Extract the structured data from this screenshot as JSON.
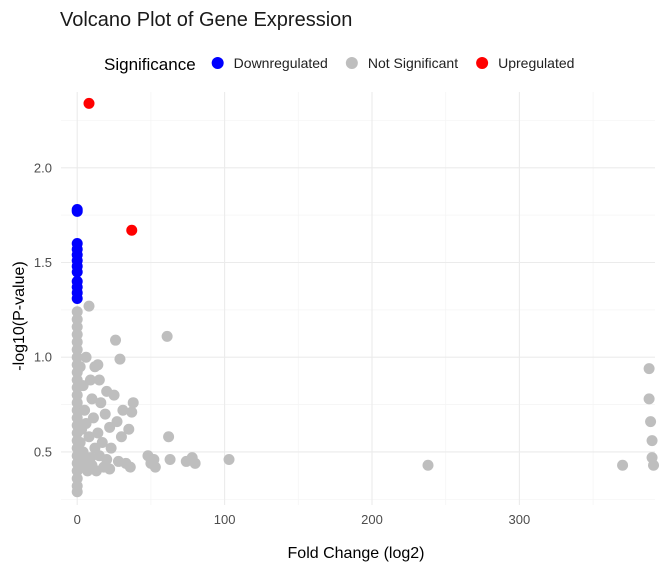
{
  "chart_data": {
    "type": "scatter",
    "title": "Volcano Plot of Gene Expression",
    "xlabel": "Fold Change (log2)",
    "ylabel": "-log10(P-value)",
    "xlim": [
      -11,
      392
    ],
    "ylim": [
      0.22,
      2.4
    ],
    "x_ticks": [
      {
        "value": 0,
        "label": "0"
      },
      {
        "value": 100,
        "label": "100"
      },
      {
        "value": 200,
        "label": "200"
      },
      {
        "value": 300,
        "label": "300"
      }
    ],
    "y_ticks": [
      {
        "value": 0.5,
        "label": "0.5"
      },
      {
        "value": 1.0,
        "label": "1.0"
      },
      {
        "value": 1.5,
        "label": "1.5"
      },
      {
        "value": 2.0,
        "label": "2.0"
      }
    ],
    "grid": true,
    "legend": {
      "title": "Significance",
      "position": "top",
      "entries": [
        {
          "name": "Downregulated",
          "color": "#0000ff"
        },
        {
          "name": "Not Significant",
          "color": "#bebebe"
        },
        {
          "name": "Upregulated",
          "color": "#ff0000"
        }
      ]
    },
    "series": [
      {
        "name": "Not Significant",
        "color": "#bebebe",
        "points": [
          [
            0,
            1.24
          ],
          [
            0,
            1.2
          ],
          [
            0,
            1.16
          ],
          [
            0,
            1.12
          ],
          [
            0,
            1.08
          ],
          [
            0,
            1.04
          ],
          [
            0,
            1.0
          ],
          [
            0,
            0.96
          ],
          [
            0,
            0.92
          ],
          [
            0,
            0.88
          ],
          [
            0,
            0.84
          ],
          [
            0,
            0.8
          ],
          [
            0,
            0.76
          ],
          [
            0,
            0.72
          ],
          [
            0,
            0.68
          ],
          [
            0,
            0.64
          ],
          [
            0,
            0.6
          ],
          [
            0,
            0.56
          ],
          [
            0,
            0.52
          ],
          [
            0,
            0.48
          ],
          [
            0,
            0.44
          ],
          [
            0,
            0.4
          ],
          [
            0,
            0.36
          ],
          [
            0,
            0.32
          ],
          [
            0,
            0.29
          ],
          [
            2,
            0.95
          ],
          [
            2,
            0.55
          ],
          [
            3,
            0.62
          ],
          [
            3,
            0.42
          ],
          [
            4,
            0.85
          ],
          [
            4,
            0.5
          ],
          [
            5,
            0.72
          ],
          [
            5,
            0.45
          ],
          [
            6,
            1.0
          ],
          [
            6,
            0.65
          ],
          [
            7,
            0.4
          ],
          [
            8,
            1.27
          ],
          [
            8,
            0.58
          ],
          [
            9,
            0.88
          ],
          [
            9,
            0.47
          ],
          [
            10,
            0.78
          ],
          [
            10,
            0.43
          ],
          [
            11,
            0.68
          ],
          [
            12,
            0.95
          ],
          [
            12,
            0.52
          ],
          [
            13,
            0.4
          ],
          [
            14,
            0.96
          ],
          [
            14,
            0.6
          ],
          [
            15,
            0.88
          ],
          [
            15,
            0.48
          ],
          [
            16,
            0.76
          ],
          [
            17,
            0.55
          ],
          [
            18,
            0.42
          ],
          [
            19,
            0.7
          ],
          [
            20,
            0.82
          ],
          [
            20,
            0.46
          ],
          [
            22,
            0.63
          ],
          [
            22,
            0.41
          ],
          [
            23,
            0.52
          ],
          [
            25,
            0.8
          ],
          [
            26,
            1.09
          ],
          [
            27,
            0.66
          ],
          [
            28,
            0.45
          ],
          [
            29,
            0.99
          ],
          [
            30,
            0.58
          ],
          [
            31,
            0.72
          ],
          [
            33,
            0.44
          ],
          [
            35,
            0.62
          ],
          [
            36,
            0.42
          ],
          [
            37,
            0.71
          ],
          [
            38,
            0.76
          ],
          [
            48,
            0.48
          ],
          [
            50,
            0.44
          ],
          [
            52,
            0.46
          ],
          [
            53,
            0.42
          ],
          [
            61,
            1.11
          ],
          [
            62,
            0.58
          ],
          [
            63,
            0.46
          ],
          [
            74,
            0.45
          ],
          [
            78,
            0.47
          ],
          [
            80,
            0.44
          ],
          [
            103,
            0.46
          ],
          [
            238,
            0.43
          ],
          [
            370,
            0.43
          ],
          [
            388,
            0.94
          ],
          [
            388,
            0.78
          ],
          [
            389,
            0.66
          ],
          [
            390,
            0.56
          ],
          [
            390,
            0.47
          ],
          [
            391,
            0.43
          ]
        ]
      },
      {
        "name": "Downregulated",
        "color": "#0000ff",
        "points": [
          [
            0,
            1.78
          ],
          [
            0,
            1.77
          ],
          [
            0,
            1.6
          ],
          [
            0,
            1.57
          ],
          [
            0,
            1.54
          ],
          [
            0,
            1.51
          ],
          [
            0,
            1.48
          ],
          [
            0,
            1.45
          ],
          [
            0,
            1.4
          ],
          [
            0,
            1.37
          ],
          [
            0,
            1.34
          ],
          [
            0,
            1.31
          ]
        ]
      },
      {
        "name": "Upregulated",
        "color": "#ff0000",
        "points": [
          [
            8,
            2.34
          ],
          [
            37,
            1.67
          ]
        ]
      }
    ]
  }
}
